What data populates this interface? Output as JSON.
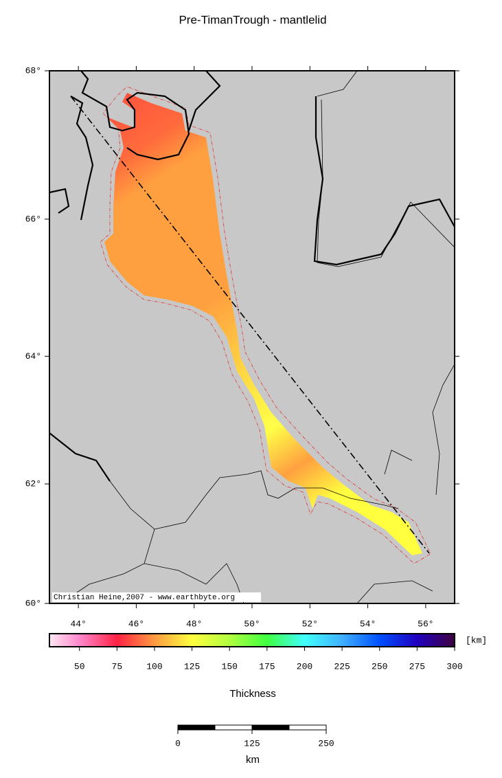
{
  "title": "Pre-TimanTrough - mantlelid",
  "map": {
    "xlim": [
      43,
      57
    ],
    "ylim": [
      60,
      68
    ],
    "xticks": [
      {
        "value": 44,
        "label": "44°"
      },
      {
        "value": 46,
        "label": "46°"
      },
      {
        "value": 48,
        "label": "48°"
      },
      {
        "value": 50,
        "label": "50°"
      },
      {
        "value": 52,
        "label": "52°"
      },
      {
        "value": 54,
        "label": "54°"
      },
      {
        "value": 56,
        "label": "56°"
      }
    ],
    "yticks": [
      {
        "value": 60,
        "label": "60°"
      },
      {
        "value": 62,
        "label": "62°"
      },
      {
        "value": 64,
        "label": "64°"
      },
      {
        "value": 66,
        "label": "66°"
      },
      {
        "value": 68,
        "label": "68°"
      }
    ],
    "credit": "Christian Heine,2007 - www.earthbyte.org"
  },
  "colorbar": {
    "lim": [
      30,
      300
    ],
    "ticks": [
      50,
      75,
      100,
      125,
      150,
      175,
      200,
      225,
      250,
      275,
      300
    ],
    "unit": "[km]",
    "label": "Thickness"
  },
  "scalebar": {
    "lim": [
      0,
      250
    ],
    "ticks": [
      0,
      125,
      250
    ],
    "unit": "km"
  }
}
